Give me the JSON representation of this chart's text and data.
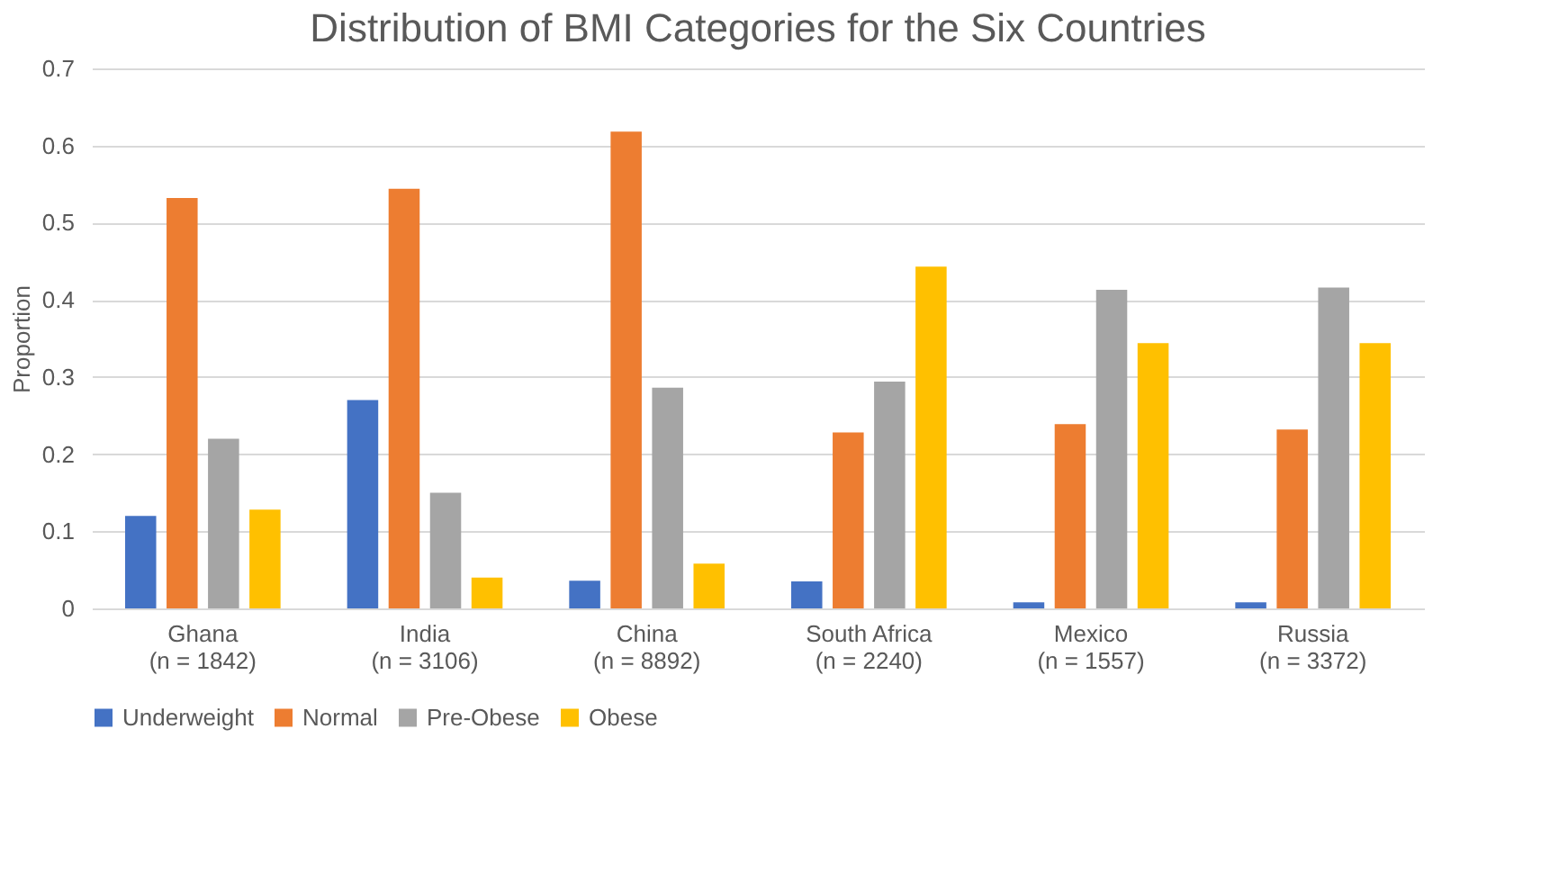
{
  "chart_data": {
    "type": "bar",
    "title": "Distribution of BMI Categories for the Six Countries",
    "ylabel": "Proportion",
    "categories": [
      "Ghana\n(n = 1842)",
      "India\n(n = 3106)",
      "China\n(n = 8892)",
      "South Africa\n(n = 2240)",
      "Mexico\n(n = 1557)",
      "Russia\n(n = 3372)"
    ],
    "series": [
      {
        "name": "Underweight",
        "color": "#4472c4",
        "values": [
          0.12,
          0.27,
          0.036,
          0.035,
          0.008,
          0.008
        ]
      },
      {
        "name": "Normal",
        "color": "#ed7d31",
        "values": [
          0.532,
          0.544,
          0.618,
          0.228,
          0.239,
          0.232
        ]
      },
      {
        "name": "Pre-Obese",
        "color": "#a5a5a5",
        "values": [
          0.22,
          0.15,
          0.286,
          0.294,
          0.413,
          0.416
        ]
      },
      {
        "name": "Obese",
        "color": "#ffc000",
        "values": [
          0.128,
          0.04,
          0.058,
          0.443,
          0.344,
          0.344
        ]
      }
    ],
    "ylim": [
      0,
      0.7
    ],
    "yticks": [
      0,
      0.1,
      0.2,
      0.3,
      0.4,
      0.5,
      0.6,
      0.7
    ],
    "grid": "y",
    "legend": "bottom"
  }
}
